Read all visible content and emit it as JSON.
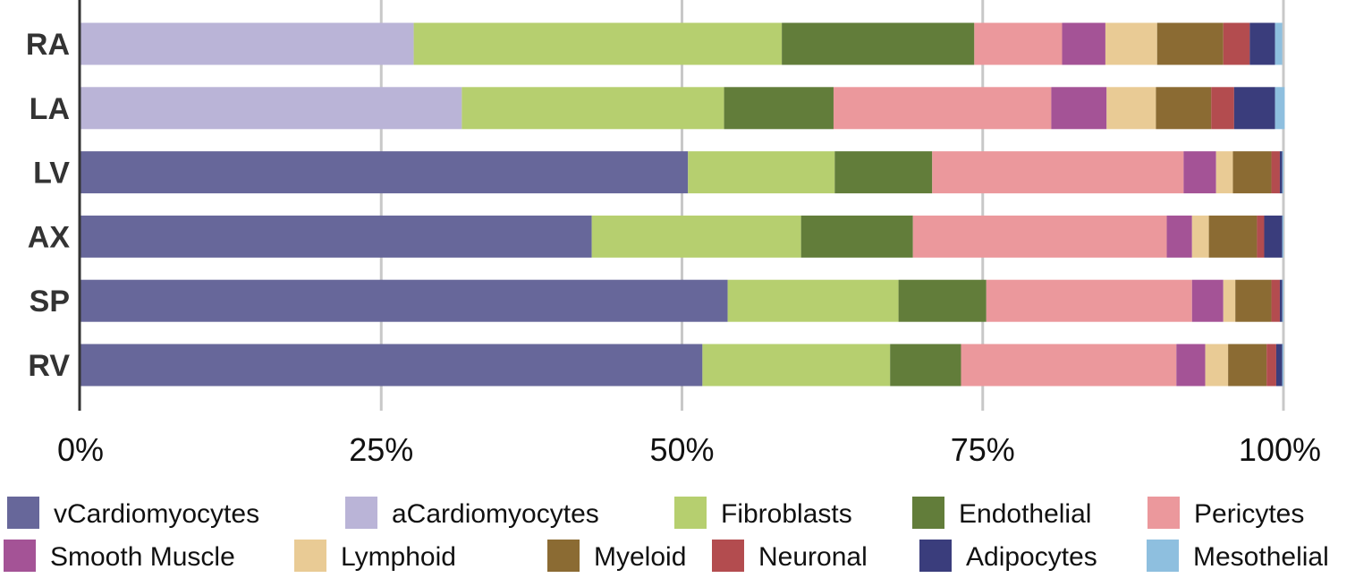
{
  "chart_data": {
    "type": "bar",
    "orientation": "horizontal",
    "stacked": true,
    "categories": [
      "RA",
      "LA",
      "LV",
      "AX",
      "SP",
      "RV"
    ],
    "x_ticks": [
      "0%",
      "25%",
      "50%",
      "75%",
      "100%"
    ],
    "xlim": [
      0,
      100
    ],
    "unit": "%",
    "grid": true,
    "legend_position": "bottom",
    "series": [
      {
        "name": "vCardiomyocytes",
        "color": "#67679a",
        "values": [
          0,
          0,
          50.5,
          42.5,
          53.8,
          51.7
        ]
      },
      {
        "name": "aCardiomyocytes",
        "color": "#bab4d7",
        "values": [
          27.7,
          31.7,
          0,
          0,
          0,
          0
        ]
      },
      {
        "name": "Fibroblasts",
        "color": "#b6cf6f",
        "values": [
          30.6,
          21.8,
          12.2,
          17.4,
          14.2,
          15.6
        ]
      },
      {
        "name": "Endothelial",
        "color": "#627d3a",
        "values": [
          16.0,
          9.1,
          8.1,
          9.3,
          7.3,
          5.9
        ]
      },
      {
        "name": "Pericytes",
        "color": "#eb989c",
        "values": [
          7.3,
          18.1,
          20.9,
          21.1,
          17.1,
          17.9
        ]
      },
      {
        "name": "Smooth Muscle",
        "color": "#a45396",
        "values": [
          3.6,
          4.6,
          2.7,
          2.1,
          2.6,
          2.4
        ]
      },
      {
        "name": "Lymphoid",
        "color": "#e9cb95",
        "values": [
          4.3,
          4.1,
          1.4,
          1.4,
          1.0,
          1.9
        ]
      },
      {
        "name": "Myeloid",
        "color": "#8b6b33",
        "values": [
          5.5,
          4.6,
          3.2,
          4.0,
          3.0,
          3.2
        ]
      },
      {
        "name": "Neuronal",
        "color": "#b34c4f",
        "values": [
          2.2,
          1.9,
          0.7,
          0.6,
          0.7,
          0.8
        ]
      },
      {
        "name": "Adipocytes",
        "color": "#3a3d7c",
        "values": [
          2.1,
          3.4,
          0.2,
          1.5,
          0.2,
          0.5
        ]
      },
      {
        "name": "Mesothelial",
        "color": "#8ebfdf",
        "values": [
          0.6,
          0.8,
          0.1,
          0.1,
          0.1,
          0.1
        ]
      }
    ]
  }
}
